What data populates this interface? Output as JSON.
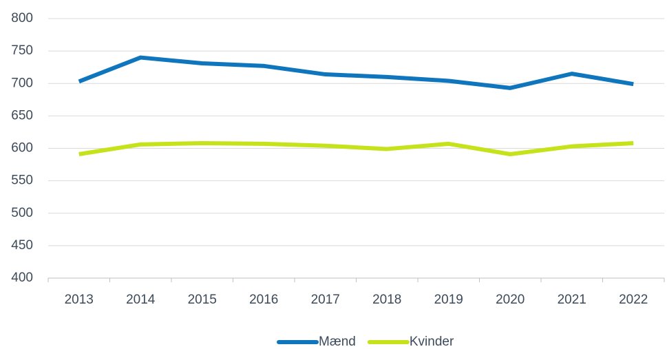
{
  "chart_data": {
    "type": "line",
    "categories": [
      "2013",
      "2014",
      "2015",
      "2016",
      "2017",
      "2018",
      "2019",
      "2020",
      "2021",
      "2022"
    ],
    "series": [
      {
        "name": "Mænd",
        "color": "#0f75bc",
        "values": [
          703,
          740,
          731,
          727,
          714,
          710,
          704,
          693,
          715,
          699
        ]
      },
      {
        "name": "Kvinder",
        "color": "#c5e21a",
        "values": [
          591,
          606,
          608,
          607,
          604,
          599,
          607,
          591,
          603,
          608
        ]
      }
    ],
    "ylim": [
      400,
      800
    ],
    "yticks": [
      400,
      450,
      500,
      550,
      600,
      650,
      700,
      750,
      800
    ],
    "grid": true,
    "legend": "bottom"
  }
}
